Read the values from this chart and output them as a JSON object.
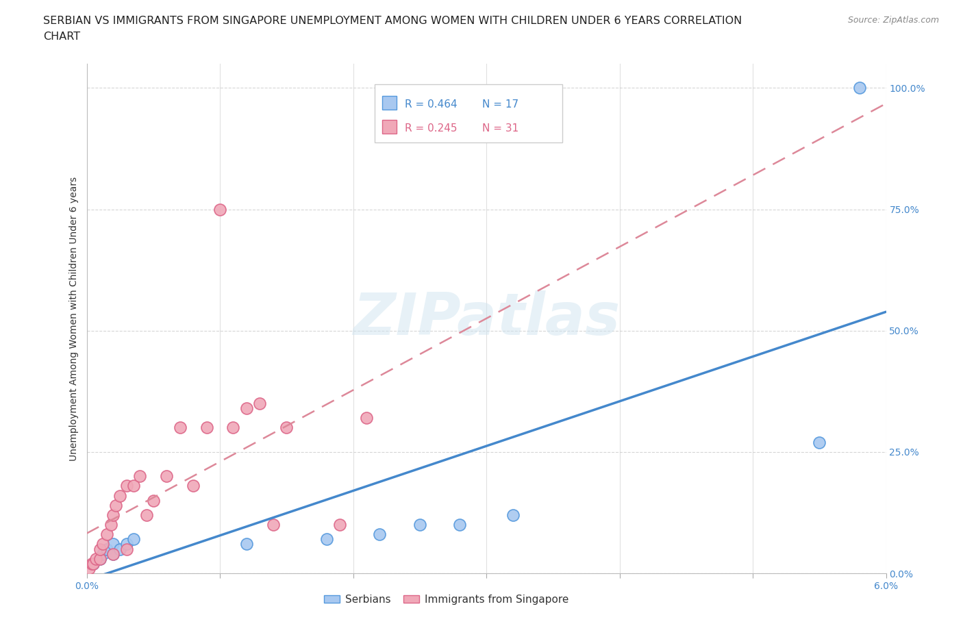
{
  "title_line1": "SERBIAN VS IMMIGRANTS FROM SINGAPORE UNEMPLOYMENT AMONG WOMEN WITH CHILDREN UNDER 6 YEARS CORRELATION",
  "title_line2": "CHART",
  "source": "Source: ZipAtlas.com",
  "ylabel": "Unemployment Among Women with Children Under 6 years",
  "xlim": [
    0.0,
    0.06
  ],
  "ylim": [
    0.0,
    1.05
  ],
  "ytick_vals": [
    0.0,
    0.25,
    0.5,
    0.75,
    1.0
  ],
  "ytick_labels": [
    "0.0%",
    "25.0%",
    "50.0%",
    "75.0%",
    "100.0%"
  ],
  "xtick_vals": [
    0.0,
    0.01,
    0.02,
    0.03,
    0.04,
    0.05,
    0.06
  ],
  "xtick_labels": [
    "0.0%",
    "",
    "",
    "",
    "",
    "",
    "6.0%"
  ],
  "serbian_color": "#a8c8f0",
  "singapore_color": "#f0a8b8",
  "serbian_edge_color": "#5599dd",
  "singapore_edge_color": "#dd6688",
  "serbian_line_color": "#4488cc",
  "singapore_line_color": "#dd8899",
  "background_color": "#ffffff",
  "watermark_text": "ZIPatlas",
  "watermark_color": "#d0e4f0",
  "legend_R_serbian": "R = 0.464",
  "legend_N_serbian": "N = 17",
  "legend_R_singapore": "R = 0.245",
  "legend_N_singapore": "N = 31",
  "serbian_x": [
    0.0005,
    0.001,
    0.0012,
    0.0015,
    0.002,
    0.002,
    0.0025,
    0.003,
    0.0035,
    0.012,
    0.018,
    0.022,
    0.025,
    0.028,
    0.032,
    0.055,
    0.058
  ],
  "serbian_y": [
    0.02,
    0.03,
    0.04,
    0.05,
    0.04,
    0.06,
    0.05,
    0.06,
    0.07,
    0.06,
    0.07,
    0.08,
    0.1,
    0.1,
    0.12,
    0.27,
    1.0
  ],
  "singapore_x": [
    0.0002,
    0.0004,
    0.0005,
    0.0007,
    0.001,
    0.001,
    0.0012,
    0.0015,
    0.0018,
    0.002,
    0.002,
    0.0022,
    0.0025,
    0.003,
    0.003,
    0.0035,
    0.004,
    0.0045,
    0.005,
    0.006,
    0.007,
    0.008,
    0.009,
    0.01,
    0.011,
    0.012,
    0.013,
    0.014,
    0.015,
    0.019,
    0.021
  ],
  "singapore_y": [
    0.01,
    0.02,
    0.02,
    0.03,
    0.03,
    0.05,
    0.06,
    0.08,
    0.1,
    0.04,
    0.12,
    0.14,
    0.16,
    0.05,
    0.18,
    0.18,
    0.2,
    0.12,
    0.15,
    0.2,
    0.3,
    0.18,
    0.3,
    0.75,
    0.3,
    0.34,
    0.35,
    0.1,
    0.3,
    0.1,
    0.32
  ],
  "grid_color": "#cccccc",
  "grid_style": "--",
  "title_fontsize": 11.5,
  "axis_label_fontsize": 10,
  "tick_fontsize": 10,
  "legend_fontsize": 11
}
